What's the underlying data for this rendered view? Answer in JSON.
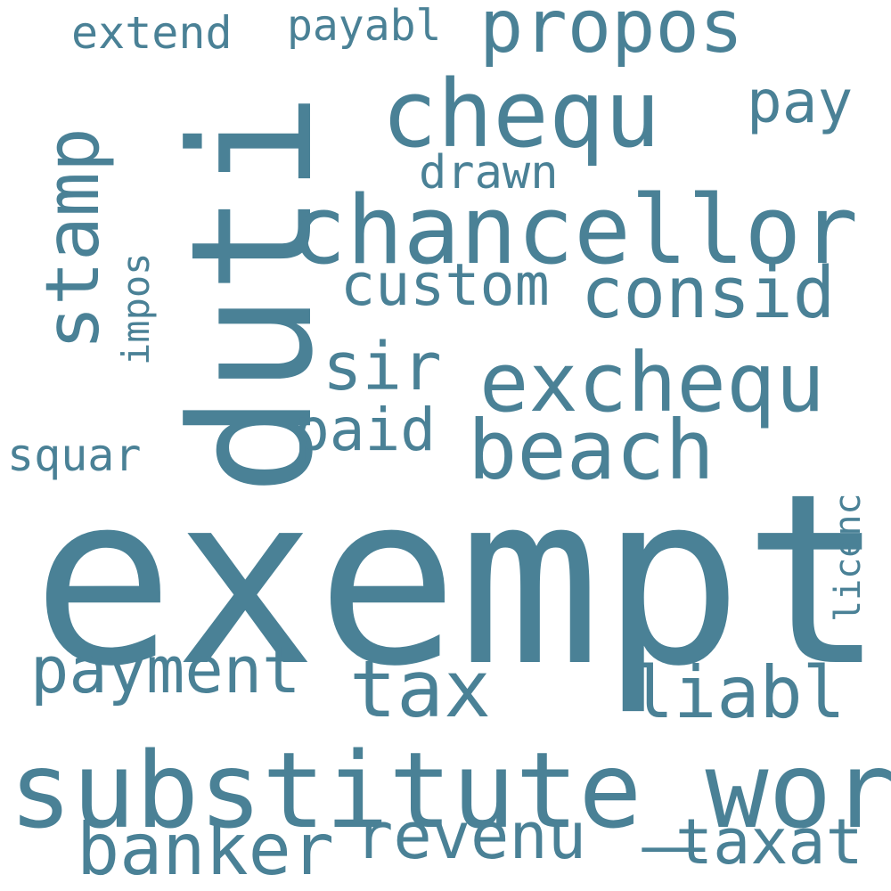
{
  "word_color": "#4a8196",
  "background_color": "#ffffff",
  "words": [
    {
      "text": "exempt",
      "rotation": "horizontal"
    },
    {
      "text": "duti",
      "rotation": "vertical"
    },
    {
      "text": "substitute_word",
      "rotation": "horizontal"
    },
    {
      "text": "chancellor",
      "rotation": "horizontal"
    },
    {
      "text": "chequ",
      "rotation": "horizontal"
    },
    {
      "text": "exchequ",
      "rotation": "horizontal"
    },
    {
      "text": "beach",
      "rotation": "horizontal"
    },
    {
      "text": "stamp",
      "rotation": "vertical"
    },
    {
      "text": "propos",
      "rotation": "horizontal"
    },
    {
      "text": "consid",
      "rotation": "horizontal"
    },
    {
      "text": "payment",
      "rotation": "horizontal"
    },
    {
      "text": "tax",
      "rotation": "horizontal"
    },
    {
      "text": "liabl",
      "rotation": "horizontal"
    },
    {
      "text": "banker",
      "rotation": "horizontal"
    },
    {
      "text": "revenu",
      "rotation": "horizontal"
    },
    {
      "text": "taxat",
      "rotation": "horizontal"
    },
    {
      "text": "custom",
      "rotation": "horizontal"
    },
    {
      "text": "sir",
      "rotation": "horizontal"
    },
    {
      "text": "paid",
      "rotation": "horizontal"
    },
    {
      "text": "pay",
      "rotation": "horizontal"
    },
    {
      "text": "drawn",
      "rotation": "horizontal"
    },
    {
      "text": "extend",
      "rotation": "horizontal"
    },
    {
      "text": "payabl",
      "rotation": "horizontal"
    },
    {
      "text": "squar",
      "rotation": "horizontal"
    },
    {
      "text": "impos",
      "rotation": "vertical"
    },
    {
      "text": "licenc",
      "rotation": "vertical"
    }
  ]
}
